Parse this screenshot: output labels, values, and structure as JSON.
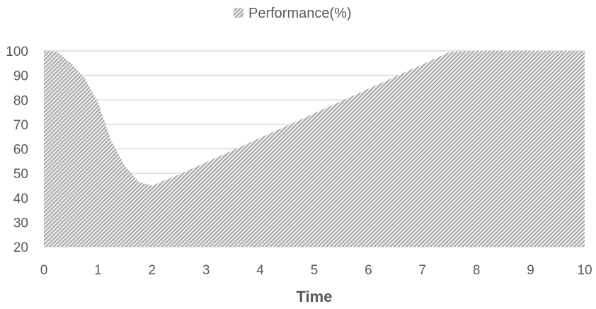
{
  "chart_data": {
    "type": "area",
    "series": [
      {
        "name": "Performance(%)",
        "x": [
          0,
          0.25,
          0.5,
          0.75,
          1.0,
          1.25,
          1.5,
          1.75,
          2.0,
          2.5,
          3.0,
          3.5,
          4.0,
          4.5,
          5.0,
          5.5,
          6.0,
          6.5,
          7.0,
          7.5,
          8.0,
          8.5,
          9.0,
          9.5,
          10.0
        ],
        "values": [
          100,
          99.5,
          95,
          89,
          79,
          63,
          53,
          46.5,
          45,
          49.5,
          54.5,
          59.5,
          64.5,
          69.5,
          74.5,
          79.5,
          84.5,
          89.5,
          94.5,
          99.5,
          100,
          100,
          100,
          100,
          100
        ]
      }
    ],
    "xlabel": "Time",
    "ylabel": "",
    "xlim": [
      0,
      10
    ],
    "ylim": [
      20,
      100
    ],
    "x_ticks": [
      "0",
      "1",
      "2",
      "3",
      "4",
      "5",
      "6",
      "7",
      "8",
      "9",
      "10"
    ],
    "y_ticks": [
      "20",
      "30",
      "40",
      "50",
      "60",
      "70",
      "80",
      "90",
      "100"
    ],
    "grid": "horizontal",
    "legend_position": "top",
    "fill_pattern": "diagonal-hatch",
    "colors": {
      "hatch": "#7f7f7f",
      "fill_bg": "#e8e8e8",
      "grid": "#d9d9d9",
      "text": "#595959"
    }
  }
}
